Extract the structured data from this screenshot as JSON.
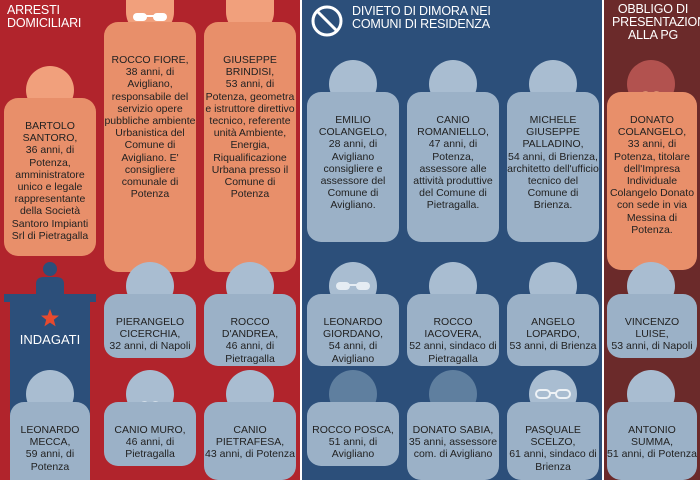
{
  "colors": {
    "red": "#b1242c",
    "blue": "#2c4f7a",
    "maroon": "#6b2a2a",
    "salmon_card": "#e88f6a",
    "salmon_head": "#f1a07c",
    "blue_card": "#9bb1c7",
    "blue_head": "#a9bdd1",
    "blue_dark_card": "#5f7f9f"
  },
  "sections": {
    "arresti": "ARRESTI DOMICILIARI",
    "divieto": "DIVIETO DI DIMORA NEI COMUNI DI RESIDENZA",
    "obbligo": "OBBLIGO DI PRESENTAZIONE ALLA PG",
    "indagati": "INDAGATI"
  },
  "people": {
    "r1c1": {
      "name": "BARTOLO SANTORO,",
      "desc": "36 anni, di Potenza, amministratore unico e legale rappresentante della Società Santoro Impianti Srl di Pietragalla"
    },
    "r1c2": {
      "name": "ROCCO FIORE,",
      "desc": "38 anni, di Avigliano, responsabile del servizio opere pubbliche ambiente Urbanistica del Comune di Avigliano. E' consigliere comunale di Potenza"
    },
    "r1c3": {
      "name": "GIUSEPPE BRINDISI,",
      "desc": "53 anni, di Potenza, geometra e istruttore direttivo tecnico, referente unità Ambiente, Energia, Riqualificazione Urbana presso il Comune di Potenza"
    },
    "r1c4": {
      "name": "EMILIO COLANGELO,",
      "desc": "28 anni, di Avigliano consigliere e assessore del Comune di Avigliano."
    },
    "r1c5": {
      "name": "CANIO ROMANIELLO,",
      "desc": "47 anni, di Potenza, assessore alle attività produttive del Comune di Pietragalla."
    },
    "r1c6": {
      "name": "MICHELE GIUSEPPE PALLADINO,",
      "desc": "54 anni, di Brienza, architetto dell'ufficio tecnico del Comune di Brienza."
    },
    "r1c7": {
      "name": "DONATO COLANGELO,",
      "desc": "33 anni, di Potenza, titolare dell'Impresa Individuale Colangelo Donato con sede in via Messina di Potenza."
    },
    "r2c2": {
      "name": "PIERANGELO CICERCHIA,",
      "desc": "32 anni, di Napoli"
    },
    "r2c3": {
      "name": "ROCCO D'ANDREA,",
      "desc": "46 anni, di Pietragalla"
    },
    "r2c4": {
      "name": "LEONARDO GIORDANO,",
      "desc": "54 anni, di Avigliano"
    },
    "r2c5": {
      "name": "ROCCO IACOVERA,",
      "desc": "52 anni, sindaco di Pietragalla"
    },
    "r2c6": {
      "name": "ANGELO LOPARDO,",
      "desc": "53 anni, di Brienza"
    },
    "r2c7": {
      "name": "VINCENZO LUISE,",
      "desc": "53 anni, di Napoli"
    },
    "r3c1": {
      "name": "LEONARDO MECCA,",
      "desc": "59 anni, di Potenza"
    },
    "r3c2": {
      "name": "CANIO MURO,",
      "desc": "46 anni, di Pietragalla"
    },
    "r3c3": {
      "name": "CANIO PIETRAFESA,",
      "desc": "43 anni, di Potenza"
    },
    "r3c4": {
      "name": "ROCCO POSCA,",
      "desc": "51 anni, di Avigliano"
    },
    "r3c5": {
      "name": "DONATO SABIA,",
      "desc": "35 anni, assessore com. di Avigliano"
    },
    "r3c6": {
      "name": "PASQUALE SCELZO,",
      "desc": "61 anni, sindaco di Brienza"
    },
    "r3c7": {
      "name": "ANTONIO SUMMA,",
      "desc": "51 anni, di Potenza"
    }
  }
}
